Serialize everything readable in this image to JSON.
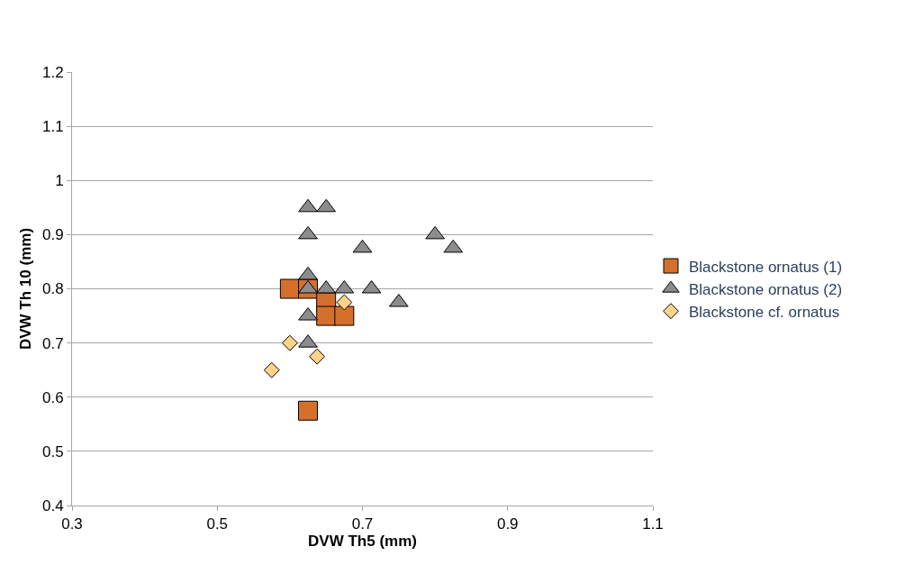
{
  "chart_data": {
    "type": "scatter",
    "xlabel": "DVW Th5 (mm)",
    "ylabel": "DVW Th 10 (mm)",
    "xlim": [
      0.3,
      1.1
    ],
    "xticks": [
      0.3,
      0.5,
      0.7,
      0.9,
      1.1
    ],
    "ylim": [
      0.4,
      1.2
    ],
    "yticks": [
      0.4,
      0.5,
      0.6,
      0.7,
      0.8,
      0.9,
      1,
      1.1,
      1.2
    ],
    "grid": "y",
    "legend": "right",
    "series": [
      {
        "name": "Blackstone ornatus (1)",
        "color": "#d4702c",
        "marker": "square",
        "x": [
          0.6,
          0.625,
          0.65,
          0.65,
          0.675,
          0.625
        ],
        "values": [
          0.8,
          0.8,
          0.775,
          0.75,
          0.75,
          0.575
        ]
      },
      {
        "name": "Blackstone ornatus (2)",
        "color": "#8c8c8c",
        "marker": "triangle",
        "x": [
          0.625,
          0.65,
          0.625,
          0.7,
          0.8,
          0.825,
          0.625,
          0.625,
          0.65,
          0.675,
          0.7125,
          0.75,
          0.625,
          0.625
        ],
        "values": [
          0.95,
          0.95,
          0.9,
          0.875,
          0.9,
          0.875,
          0.825,
          0.8,
          0.8,
          0.8,
          0.8,
          0.775,
          0.75,
          0.7
        ]
      },
      {
        "name": "Blackstone cf. ornatus",
        "color": "#ffd28a",
        "marker": "diamond",
        "x": [
          0.675,
          0.6,
          0.6375,
          0.575
        ],
        "values": [
          0.775,
          0.7,
          0.675,
          0.65
        ]
      }
    ]
  }
}
